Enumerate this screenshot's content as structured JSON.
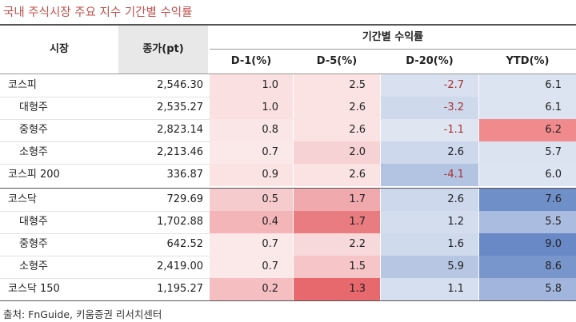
{
  "title": "국내 주식시장 주요 지수 기간별 수익률",
  "source": "출처: FnGuide, 키움증권 리서치센터",
  "header": {
    "market": "시장",
    "close": "종가(pt)",
    "returns_group": "기간별 수익률",
    "d1": "D-1(%)",
    "d5": "D-5(%)",
    "d20": "D-20(%)",
    "ytd": "YTD(%)"
  },
  "rows": [
    {
      "name": "코스피",
      "close": "2,546.30",
      "d1": "1.0",
      "d5": "2.5",
      "d20": "-2.7",
      "ytd": "6.1"
    },
    {
      "name": "대형주",
      "close": "2,535.27",
      "d1": "1.0",
      "d5": "2.6",
      "d20": "-3.2",
      "ytd": "6.1"
    },
    {
      "name": "중형주",
      "close": "2,823.14",
      "d1": "0.8",
      "d5": "2.6",
      "d20": "-1.1",
      "ytd": "6.2"
    },
    {
      "name": "소형주",
      "close": "2,213.46",
      "d1": "0.7",
      "d5": "2.0",
      "d20": "2.6",
      "ytd": "5.7"
    },
    {
      "name": "코스피 200",
      "close": "336.87",
      "d1": "0.9",
      "d5": "2.6",
      "d20": "-4.1",
      "ytd": "6.0"
    },
    {
      "name": "코스닥",
      "close": "729.69",
      "d1": "0.5",
      "d5": "1.7",
      "d20": "2.6",
      "ytd": "7.6"
    },
    {
      "name": "대형주",
      "close": "1,702.88",
      "d1": "0.4",
      "d5": "1.7",
      "d20": "1.2",
      "ytd": "5.5"
    },
    {
      "name": "중형주",
      "close": "642.52",
      "d1": "0.7",
      "d5": "2.2",
      "d20": "1.6",
      "ytd": "9.0"
    },
    {
      "name": "소형주",
      "close": "2,419.00",
      "d1": "0.7",
      "d5": "1.5",
      "d20": "5.9",
      "ytd": "8.6"
    },
    {
      "name": "코스닥 150",
      "close": "1,195.27",
      "d1": "0.2",
      "d5": "1.3",
      "d20": "1.1",
      "ytd": "5.8"
    }
  ],
  "colors": {
    "d1": [
      "#fbe0e1",
      "#fbe0e1",
      "#fbe6e7",
      "#fbe9ea",
      "#fbe3e4",
      "#f6cbcd",
      "#f3b5b8",
      "#fbe9ea",
      "#fbe9ea",
      "#f5bfc2"
    ],
    "d5": [
      "#fbe3e4",
      "#fbe3e4",
      "#fbe3e4",
      "#f7d2d4",
      "#fbe3e4",
      "#f0a9ac",
      "#e97c80",
      "#f8d9db",
      "#f5c5c8",
      "#e7686d"
    ],
    "d20": [
      "#d9e0ef",
      "#ced9ec",
      "#dfe5f1",
      "#cdd8ec",
      "#b3c4e2",
      "#cdd8ec",
      "#d3ddee",
      "#d0daed",
      "#b6c6e3",
      "#d6dfef"
    ],
    "ytd": [
      "#dde4f1",
      "#dde4f1",
      "#f08a8d",
      "#dbe3f1",
      "#dde4f1",
      "#6f8fc8",
      "#aabce0",
      "#6888c6",
      "#7896cc",
      "#a2b5dc"
    ]
  }
}
